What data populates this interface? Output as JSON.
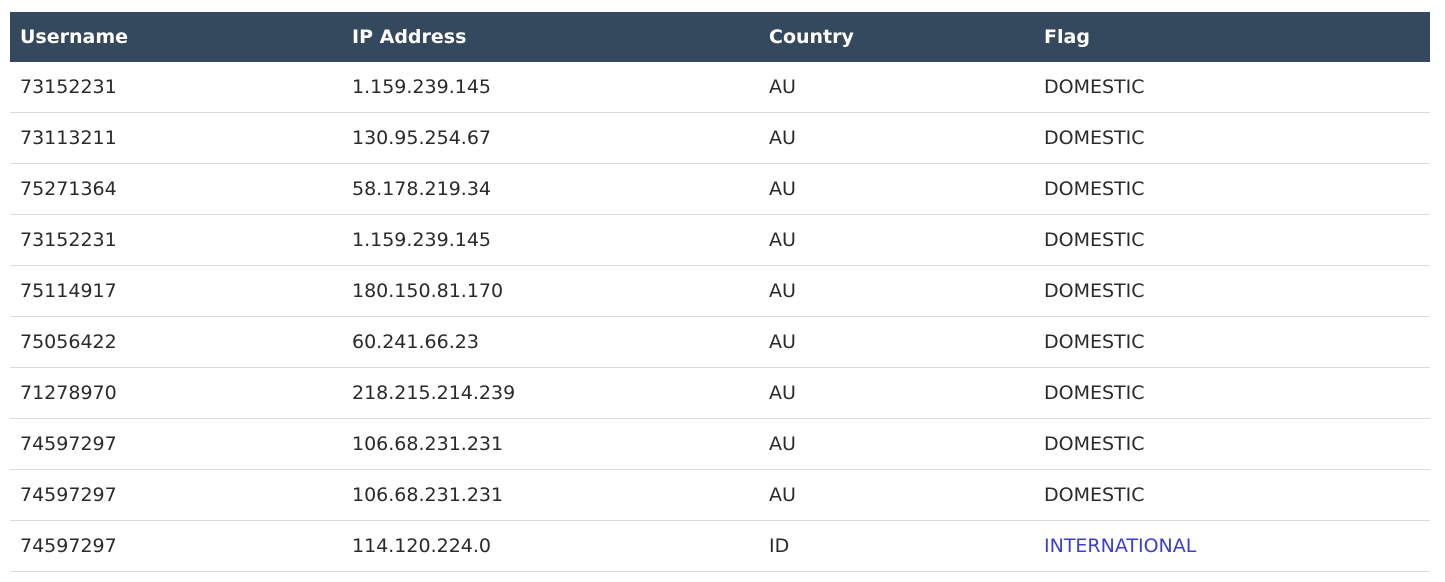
{
  "table": {
    "columns": [
      "Username",
      "IP Address",
      "Country",
      "Flag"
    ],
    "rows": [
      {
        "username": "73152231",
        "ip": "1.159.239.145",
        "country": "AU",
        "flag": "DOMESTIC"
      },
      {
        "username": "73113211",
        "ip": "130.95.254.67",
        "country": "AU",
        "flag": "DOMESTIC"
      },
      {
        "username": "75271364",
        "ip": "58.178.219.34",
        "country": "AU",
        "flag": "DOMESTIC"
      },
      {
        "username": "73152231",
        "ip": "1.159.239.145",
        "country": "AU",
        "flag": "DOMESTIC"
      },
      {
        "username": "75114917",
        "ip": "180.150.81.170",
        "country": "AU",
        "flag": "DOMESTIC"
      },
      {
        "username": "75056422",
        "ip": "60.241.66.23",
        "country": "AU",
        "flag": "DOMESTIC"
      },
      {
        "username": "71278970",
        "ip": "218.215.214.239",
        "country": "AU",
        "flag": "DOMESTIC"
      },
      {
        "username": "74597297",
        "ip": "106.68.231.231",
        "country": "AU",
        "flag": "DOMESTIC"
      },
      {
        "username": "74597297",
        "ip": "106.68.231.231",
        "country": "AU",
        "flag": "DOMESTIC"
      },
      {
        "username": "74597297",
        "ip": "114.120.224.0",
        "country": "ID",
        "flag": "INTERNATIONAL"
      }
    ]
  },
  "colors": {
    "header_bg": "#34495e",
    "header_text": "#ffffff",
    "international": "#3b3fd1"
  }
}
